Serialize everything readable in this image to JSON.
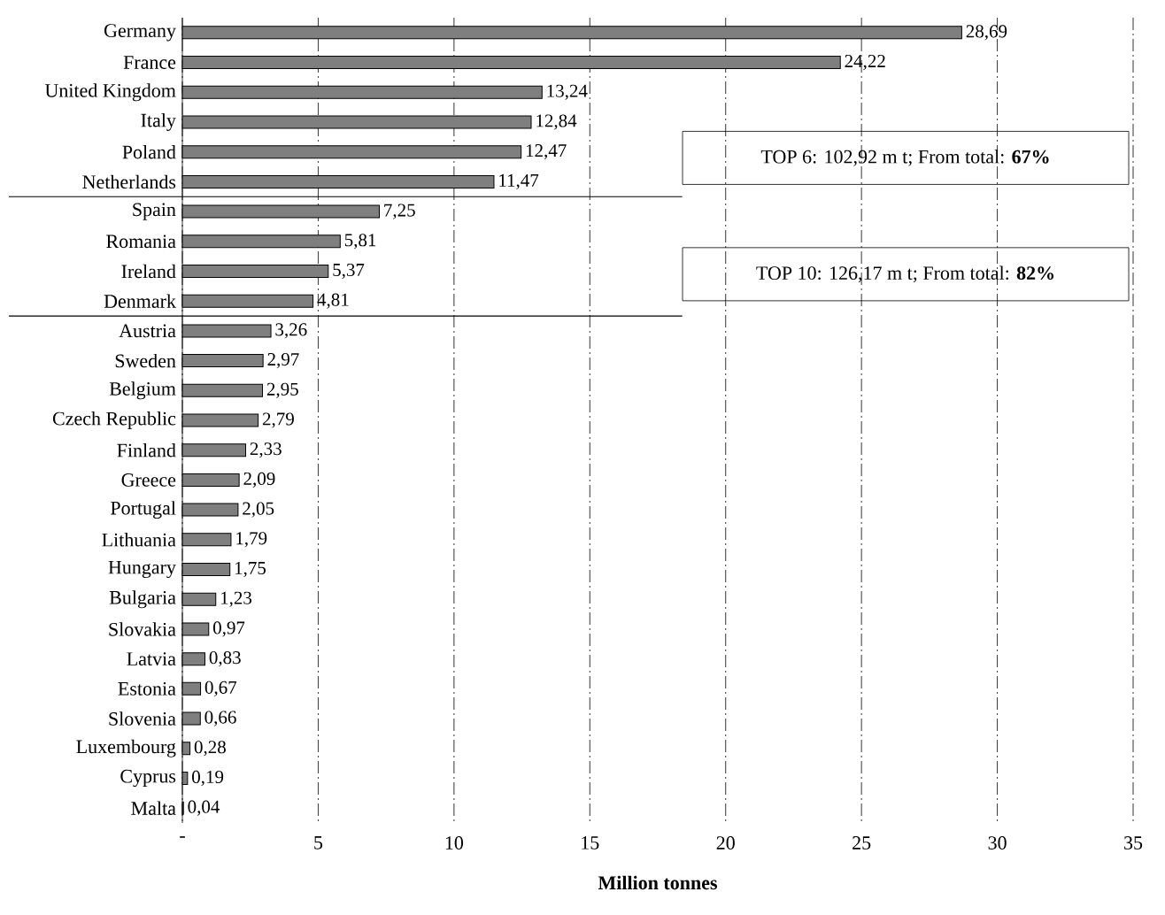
{
  "chart_data": {
    "type": "bar",
    "orientation": "horizontal",
    "xlabel": "Million tonnes",
    "categories": [
      "Germany",
      "France",
      "United Kingdom",
      "Italy",
      "Poland",
      "Netherlands",
      "Spain",
      "Romania",
      "Ireland",
      "Denmark",
      "Austria",
      "Sweden",
      "Belgium",
      "Czech Republic",
      "Finland",
      "Greece",
      "Portugal",
      "Lithuania",
      "Hungary",
      "Bulgaria",
      "Slovakia",
      "Latvia",
      "Estonia",
      "Slovenia",
      "Luxembourg",
      "Cyprus",
      "Malta"
    ],
    "values": [
      28.69,
      24.22,
      13.24,
      12.84,
      12.47,
      11.47,
      7.25,
      5.81,
      5.37,
      4.81,
      3.26,
      2.97,
      2.95,
      2.79,
      2.33,
      2.09,
      2.05,
      1.79,
      1.75,
      1.23,
      0.97,
      0.83,
      0.67,
      0.66,
      0.28,
      0.19,
      0.04
    ],
    "value_labels": [
      "28,69",
      "24,22",
      "13,24",
      "12,84",
      "12,47",
      "11,47",
      "7,25",
      "5,81",
      "5,37",
      "4,81",
      "3,26",
      "2,97",
      "2,95",
      "2,79",
      "2,33",
      "2,09",
      "2,05",
      "1,79",
      "1,75",
      "1,23",
      "0,97",
      "0,83",
      "0,67",
      "0,66",
      "0,28",
      "0,19",
      "0,04"
    ],
    "color": "#7f7f7f",
    "xlim": [
      0,
      35
    ],
    "xticks": [
      {
        "value": 0,
        "label": "-"
      },
      5,
      10,
      15,
      20,
      25,
      30,
      35
    ],
    "grid": "x",
    "annotations": [
      "TOP 6: 102,92 m t; From total: **67%**",
      "TOP 10: 126,17 m t; From total: **82%**"
    ]
  }
}
